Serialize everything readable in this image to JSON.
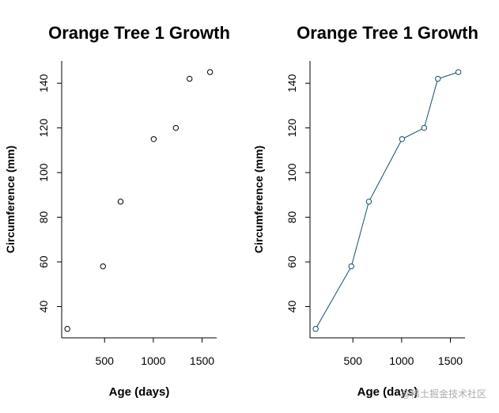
{
  "colors": {
    "title": "#1a6a86",
    "line": "#0f4f68",
    "point_left": "#000000",
    "point_right": "#0f4f68",
    "axis": "#000000"
  },
  "watermark": "@稀土掘金技术社区",
  "chart_data": [
    {
      "type": "scatter",
      "title": "Orange Tree 1 Growth",
      "xlabel": "Age (days)",
      "ylabel": "Circumference (mm)",
      "x": [
        118,
        484,
        664,
        1004,
        1231,
        1372,
        1582
      ],
      "y": [
        30,
        58,
        87,
        115,
        120,
        142,
        145
      ],
      "xlim": [
        60,
        1650
      ],
      "ylim": [
        26,
        150
      ],
      "xticks": [
        500,
        1000,
        1500
      ],
      "yticks": [
        40,
        60,
        80,
        100,
        120,
        140
      ],
      "grid": false
    },
    {
      "type": "line",
      "title": "Orange Tree 1 Growth",
      "xlabel": "Age (days)",
      "ylabel": "Circumference (mm)",
      "x": [
        118,
        484,
        664,
        1004,
        1231,
        1372,
        1582
      ],
      "y": [
        30,
        58,
        87,
        115,
        120,
        142,
        145
      ],
      "xlim": [
        60,
        1650
      ],
      "ylim": [
        26,
        150
      ],
      "xticks": [
        500,
        1000,
        1500
      ],
      "yticks": [
        40,
        60,
        80,
        100,
        120,
        140
      ],
      "markers": true,
      "grid": false
    }
  ]
}
